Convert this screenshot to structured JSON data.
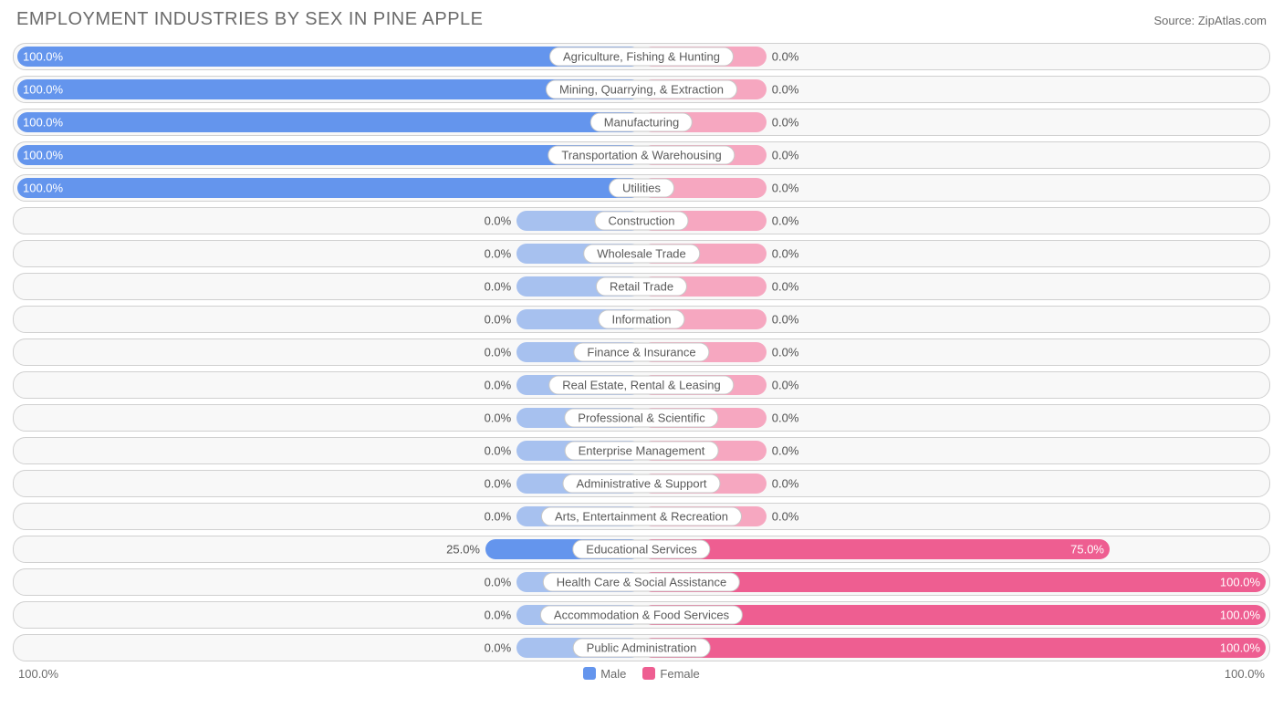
{
  "title": "EMPLOYMENT INDUSTRIES BY SEX IN PINE APPLE",
  "source": "Source: ZipAtlas.com",
  "axis_left": "100.0%",
  "axis_right": "100.0%",
  "legend": {
    "male": "Male",
    "female": "Female"
  },
  "colors": {
    "male": "#6495ed",
    "male_faded": "#a7c1ef",
    "female": "#ee5e91",
    "female_faded": "#f6a7c0",
    "row_border": "#d0d0d0",
    "row_bg": "#f8f8f8",
    "text": "#6b6b6b",
    "pct_inside": "#ffffff"
  },
  "chart": {
    "type": "diverging-bar",
    "min_bar_pct": 20,
    "rows": [
      {
        "label": "Agriculture, Fishing & Hunting",
        "male": 100.0,
        "female": 0.0
      },
      {
        "label": "Mining, Quarrying, & Extraction",
        "male": 100.0,
        "female": 0.0
      },
      {
        "label": "Manufacturing",
        "male": 100.0,
        "female": 0.0
      },
      {
        "label": "Transportation & Warehousing",
        "male": 100.0,
        "female": 0.0
      },
      {
        "label": "Utilities",
        "male": 100.0,
        "female": 0.0
      },
      {
        "label": "Construction",
        "male": 0.0,
        "female": 0.0
      },
      {
        "label": "Wholesale Trade",
        "male": 0.0,
        "female": 0.0
      },
      {
        "label": "Retail Trade",
        "male": 0.0,
        "female": 0.0
      },
      {
        "label": "Information",
        "male": 0.0,
        "female": 0.0
      },
      {
        "label": "Finance & Insurance",
        "male": 0.0,
        "female": 0.0
      },
      {
        "label": "Real Estate, Rental & Leasing",
        "male": 0.0,
        "female": 0.0
      },
      {
        "label": "Professional & Scientific",
        "male": 0.0,
        "female": 0.0
      },
      {
        "label": "Enterprise Management",
        "male": 0.0,
        "female": 0.0
      },
      {
        "label": "Administrative & Support",
        "male": 0.0,
        "female": 0.0
      },
      {
        "label": "Arts, Entertainment & Recreation",
        "male": 0.0,
        "female": 0.0
      },
      {
        "label": "Educational Services",
        "male": 25.0,
        "female": 75.0
      },
      {
        "label": "Health Care & Social Assistance",
        "male": 0.0,
        "female": 100.0
      },
      {
        "label": "Accommodation & Food Services",
        "male": 0.0,
        "female": 100.0
      },
      {
        "label": "Public Administration",
        "male": 0.0,
        "female": 100.0
      }
    ]
  }
}
